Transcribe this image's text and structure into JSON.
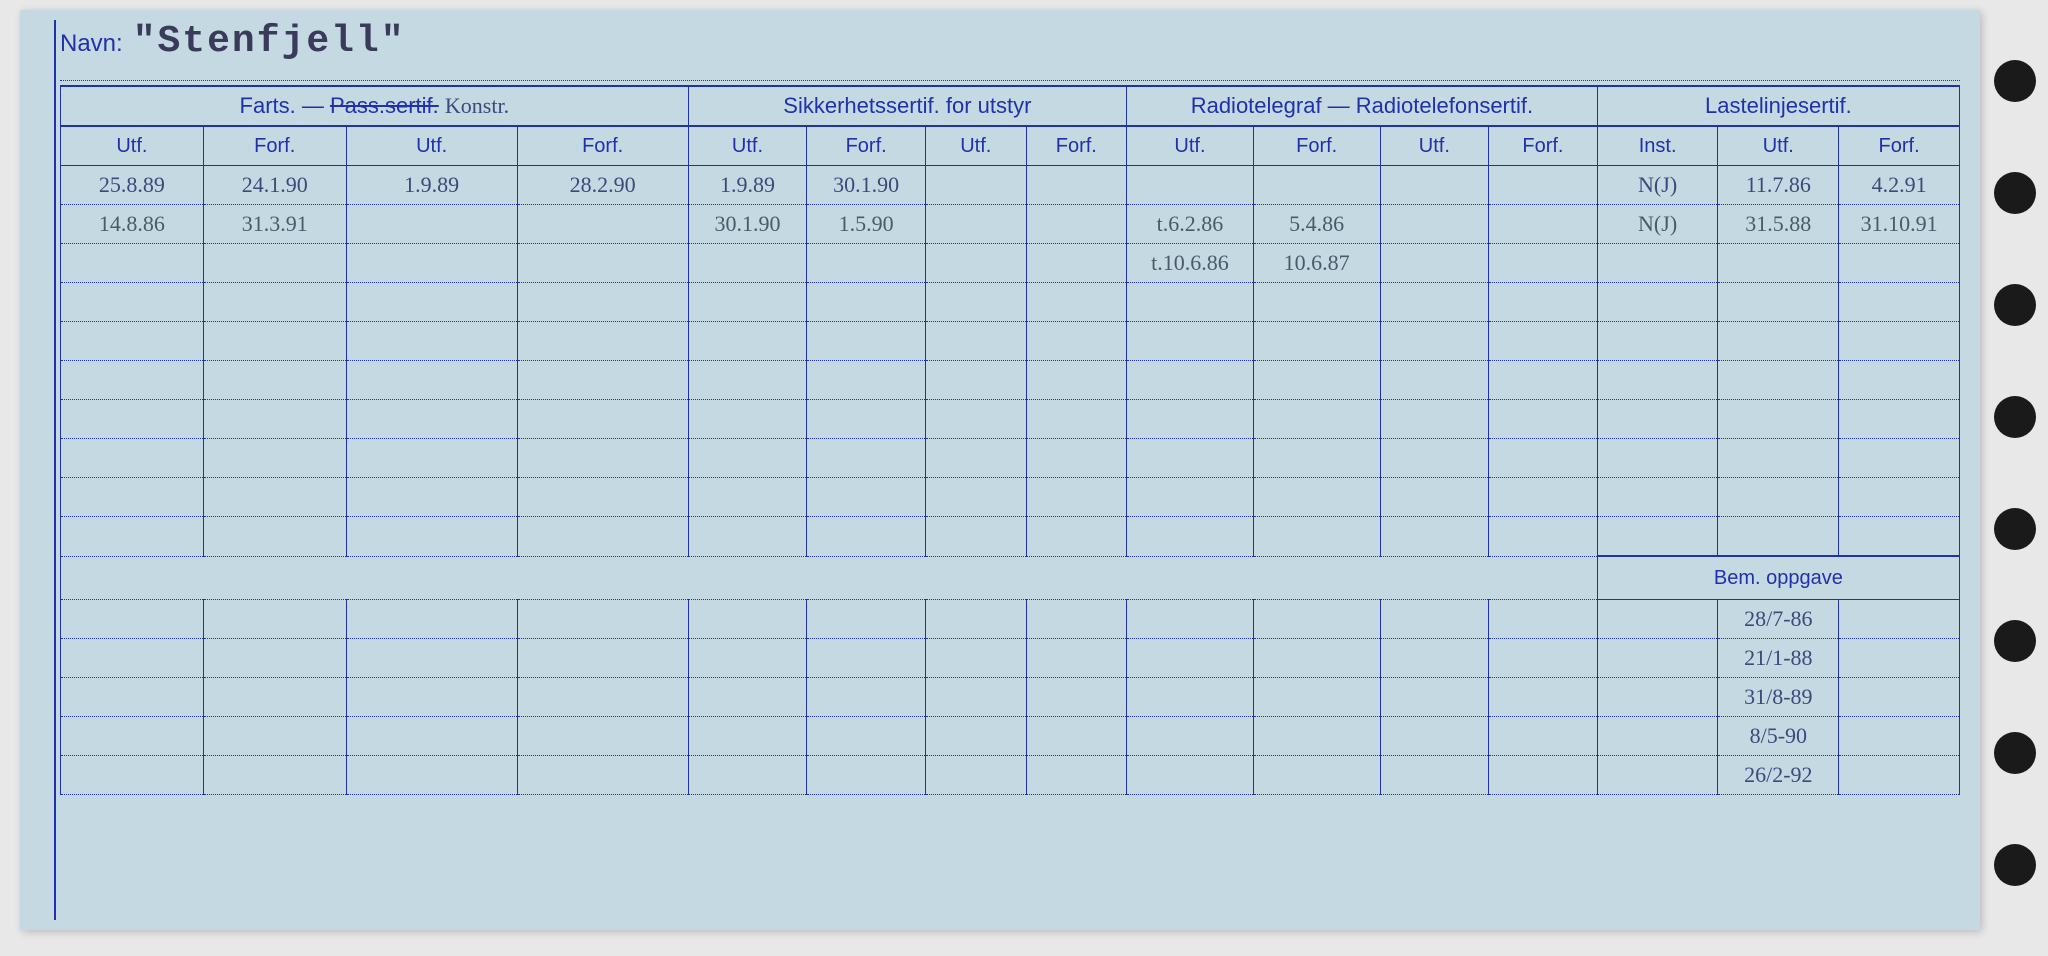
{
  "form": {
    "name_label": "Navn:",
    "name_value": "\"Stenfjell\"",
    "group_headers": {
      "g1": "Farts.  —  ",
      "g1_strike": "Pass.sertif.",
      "g1_hand": "Konstr.",
      "g2": "Sikkerhetssertif. for utstyr",
      "g3": "Radiotelegraf — Radiotelefonsertif.",
      "g4": "Lastelinjesertif."
    },
    "sub_headers": [
      "Utf.",
      "Forf.",
      "Utf.",
      "Forf.",
      "Utf.",
      "Forf.",
      "Utf.",
      "Forf.",
      "Utf.",
      "Forf.",
      "Utf.",
      "Forf.",
      "Inst.",
      "Utf.",
      "Forf."
    ],
    "rows": [
      [
        "25.8.89",
        "24.1.90",
        "1.9.89",
        "28.2.90",
        "1.9.89",
        "30.1.90",
        "",
        "",
        "",
        "",
        "",
        "",
        "N(J)",
        "11.7.86",
        "4.2.91"
      ],
      [
        "14.8.86",
        "31.3.91",
        "",
        "",
        "30.1.90",
        "1.5.90",
        "",
        "",
        "t.6.2.86",
        "5.4.86",
        "",
        "",
        "N(J)",
        "31.5.88",
        "31.10.91"
      ],
      [
        "",
        "",
        "",
        "",
        "",
        "",
        "",
        "",
        "t.10.6.86",
        "10.6.87",
        "",
        "",
        "",
        "",
        ""
      ],
      [
        "",
        "",
        "",
        "",
        "",
        "",
        "",
        "",
        "",
        "",
        "",
        "",
        "",
        "",
        ""
      ],
      [
        "",
        "",
        "",
        "",
        "",
        "",
        "",
        "",
        "",
        "",
        "",
        "",
        "",
        "",
        ""
      ],
      [
        "",
        "",
        "",
        "",
        "",
        "",
        "",
        "",
        "",
        "",
        "",
        "",
        "",
        "",
        ""
      ],
      [
        "",
        "",
        "",
        "",
        "",
        "",
        "",
        "",
        "",
        "",
        "",
        "",
        "",
        "",
        ""
      ],
      [
        "",
        "",
        "",
        "",
        "",
        "",
        "",
        "",
        "",
        "",
        "",
        "",
        "",
        "",
        ""
      ],
      [
        "",
        "",
        "",
        "",
        "",
        "",
        "",
        "",
        "",
        "",
        "",
        "",
        "",
        "",
        ""
      ],
      [
        "",
        "",
        "",
        "",
        "",
        "",
        "",
        "",
        "",
        "",
        "",
        "",
        "",
        "",
        ""
      ]
    ],
    "bem_label": "Bem. oppgave",
    "bem_rows": [
      [
        "",
        "",
        "",
        "",
        "",
        "",
        "",
        "",
        "",
        "",
        "",
        "",
        "",
        "28/7-86",
        ""
      ],
      [
        "",
        "",
        "",
        "",
        "",
        "",
        "",
        "",
        "",
        "",
        "",
        "",
        "",
        "21/1-88",
        ""
      ],
      [
        "",
        "",
        "",
        "",
        "",
        "",
        "",
        "",
        "",
        "",
        "",
        "",
        "",
        "31/8-89",
        ""
      ],
      [
        "",
        "",
        "",
        "",
        "",
        "",
        "",
        "",
        "",
        "",
        "",
        "",
        "",
        "8/5-90",
        ""
      ],
      [
        "",
        "",
        "",
        "",
        "",
        "",
        "",
        "",
        "",
        "",
        "",
        "",
        "",
        "26/2-92",
        ""
      ]
    ]
  },
  "style": {
    "ink": "#2131a8",
    "paper": "#c5d9e2",
    "handwriting1": "#3a4a7a",
    "handwriting2": "#4a5a6a"
  }
}
